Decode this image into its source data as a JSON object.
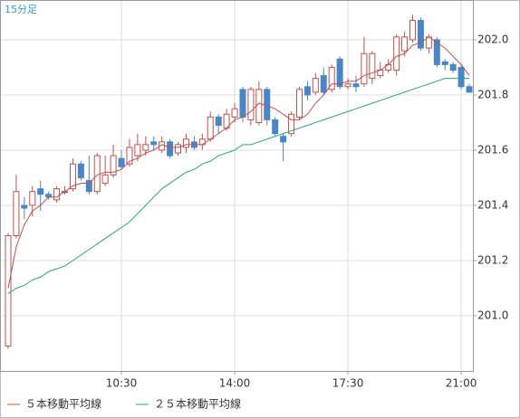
{
  "chart_data": {
    "type": "candlestick",
    "title": "15分足",
    "categories": [
      null,
      null,
      null,
      null,
      null,
      null,
      null,
      null,
      null,
      null,
      null,
      null,
      null,
      null,
      "10:30",
      null,
      null,
      null,
      null,
      null,
      null,
      null,
      null,
      null,
      null,
      null,
      null,
      null,
      "14:00",
      null,
      null,
      null,
      null,
      null,
      null,
      null,
      null,
      null,
      null,
      null,
      null,
      null,
      "17:30",
      null,
      null,
      null,
      null,
      null,
      null,
      null,
      null,
      null,
      null,
      null,
      null,
      null,
      "21:00",
      null
    ],
    "open": [
      200.89,
      201.29,
      201.4,
      201.4,
      201.46,
      201.44,
      201.42,
      201.45,
      201.46,
      201.55,
      201.49,
      201.45,
      201.48,
      201.51,
      201.57,
      201.55,
      201.58,
      201.6,
      201.63,
      201.6,
      201.63,
      201.59,
      201.61,
      201.63,
      201.62,
      201.64,
      201.72,
      201.68,
      201.72,
      201.82,
      201.71,
      201.7,
      201.82,
      201.71,
      201.65,
      201.66,
      201.72,
      201.83,
      201.81,
      201.87,
      201.82,
      201.93,
      201.83,
      201.84,
      201.84,
      201.86,
      201.87,
      201.89,
      201.89,
      201.96,
      202.0,
      202.07,
      201.97,
      202.0,
      201.92,
      201.91,
      201.9,
      201.83
    ],
    "high": [
      201.3,
      201.51,
      201.43,
      201.47,
      201.49,
      201.45,
      201.47,
      201.47,
      201.57,
      201.56,
      201.58,
      201.59,
      201.58,
      201.62,
      201.6,
      201.64,
      201.66,
      201.65,
      201.65,
      201.65,
      201.64,
      201.63,
      201.66,
      201.65,
      201.66,
      201.74,
      201.73,
      201.75,
      201.77,
      201.83,
      201.83,
      201.85,
      201.83,
      201.72,
      201.66,
      201.74,
      201.83,
      201.85,
      201.88,
      201.9,
      201.91,
      201.94,
      201.86,
      201.87,
      202.01,
      201.96,
      201.92,
      201.93,
      202.02,
      202.03,
      202.09,
      202.08,
      202.02,
      202.01,
      201.93,
      201.92,
      201.91,
      201.84
    ],
    "low": [
      200.88,
      201.28,
      201.35,
      201.36,
      201.38,
      201.42,
      201.41,
      201.44,
      201.45,
      201.49,
      201.44,
      201.44,
      201.47,
      201.5,
      201.53,
      201.54,
      201.56,
      201.58,
      201.6,
      201.59,
      201.57,
      201.58,
      201.59,
      201.6,
      201.6,
      201.63,
      201.66,
      201.67,
      201.7,
      201.7,
      201.69,
      201.69,
      201.69,
      201.65,
      201.56,
      201.65,
      201.71,
      201.78,
      201.8,
      201.8,
      201.81,
      201.82,
      201.82,
      201.81,
      201.83,
      201.84,
      201.86,
      201.88,
      201.87,
      201.94,
      201.99,
      201.96,
      201.95,
      201.9,
      201.89,
      201.88,
      201.82,
      201.81
    ],
    "close": [
      201.29,
      201.45,
      201.39,
      201.45,
      201.44,
      201.43,
      201.46,
      201.45,
      201.55,
      201.5,
      201.45,
      201.58,
      201.51,
      201.58,
      201.54,
      201.61,
      201.62,
      201.62,
      201.62,
      201.63,
      201.58,
      201.62,
      201.64,
      201.61,
      201.64,
      201.72,
      201.69,
      201.73,
      201.75,
      201.72,
      201.82,
      201.82,
      201.71,
      201.66,
      201.63,
      201.73,
      201.82,
      201.8,
      201.86,
      201.81,
      201.9,
      201.83,
      201.84,
      201.83,
      201.95,
      201.95,
      201.89,
      201.91,
      202.01,
      202.01,
      202.07,
      201.97,
      202.01,
      201.91,
      201.91,
      201.89,
      201.83,
      201.81
    ],
    "up_color": "#c0504d",
    "down_color": "#4a86c5",
    "series": [
      {
        "name": "５本移動平均線",
        "color": "#c0504d",
        "values": [
          201.1,
          201.25,
          201.33,
          201.38,
          201.4,
          201.43,
          201.43,
          201.45,
          201.47,
          201.48,
          201.48,
          201.51,
          201.52,
          201.52,
          201.53,
          201.56,
          201.57,
          201.59,
          201.6,
          201.62,
          201.61,
          201.61,
          201.62,
          201.62,
          201.62,
          201.64,
          201.66,
          201.68,
          201.71,
          201.72,
          201.74,
          201.77,
          201.76,
          201.75,
          201.73,
          201.71,
          201.71,
          201.73,
          201.77,
          201.8,
          201.84,
          201.84,
          201.85,
          201.85,
          201.87,
          201.88,
          201.89,
          201.91,
          201.94,
          201.95,
          201.98,
          201.99,
          202.01,
          201.99,
          201.97,
          201.94,
          201.91,
          201.87
        ]
      },
      {
        "name": "２５本移動平均線",
        "color": "#2aa57a",
        "values": [
          201.08,
          201.1,
          201.11,
          201.13,
          201.14,
          201.16,
          201.17,
          201.18,
          201.2,
          201.22,
          201.24,
          201.26,
          201.28,
          201.3,
          201.32,
          201.34,
          201.37,
          201.4,
          201.43,
          201.46,
          201.48,
          201.5,
          201.52,
          201.53,
          201.55,
          201.56,
          201.58,
          201.59,
          201.6,
          201.62,
          201.62,
          201.63,
          201.64,
          201.65,
          201.66,
          201.67,
          201.68,
          201.69,
          201.7,
          201.71,
          201.72,
          201.73,
          201.74,
          201.75,
          201.76,
          201.77,
          201.78,
          201.79,
          201.8,
          201.81,
          201.82,
          201.83,
          201.84,
          201.85,
          201.86,
          201.86,
          201.86,
          201.86
        ]
      }
    ],
    "ylim": [
      200.8,
      202.144
    ],
    "yticks": [
      {
        "value": 201,
        "label": "201.0"
      },
      201.2,
      201.4,
      201.6,
      {
        "value": 201.8,
        "label": "201.8"
      },
      {
        "value": 202,
        "label": "202.0"
      }
    ],
    "grid": true
  }
}
